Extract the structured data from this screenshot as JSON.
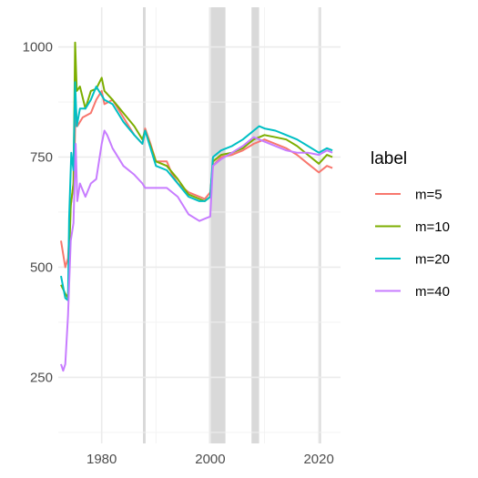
{
  "chart_data": {
    "type": "line",
    "title": "",
    "xlabel": "",
    "ylabel": "",
    "xlim": [
      1972,
      2024
    ],
    "ylim": [
      100,
      1090
    ],
    "x_ticks": [
      1980,
      2000,
      2020
    ],
    "x_tick_labels": [
      "1980",
      "2000",
      "2020"
    ],
    "y_ticks": [
      250,
      500,
      750,
      1000
    ],
    "y_tick_labels": [
      "250",
      "500",
      "750",
      "1000"
    ],
    "grid": true,
    "legend": {
      "title": "label",
      "position": "right"
    },
    "shaded_periods": [
      [
        1987.6,
        1988.1
      ],
      [
        1999.8,
        2002.8
      ],
      [
        2007.6,
        2009.0
      ],
      [
        2020.1,
        2020.4
      ]
    ],
    "series": [
      {
        "name": "m=5",
        "color": "#F8766D",
        "x": [
          1972.5,
          1973.3,
          1973.8,
          1974.3,
          1974.9,
          1975.2,
          1975.5,
          1976.5,
          1978,
          1979,
          1980,
          1980.5,
          1982,
          1984,
          1986,
          1987.5,
          1988,
          1989,
          1990,
          1992,
          1993,
          1994,
          1996,
          1998,
          1999,
          2000,
          2000.5,
          2002,
          2004,
          2006,
          2008,
          2010,
          2012,
          2014,
          2016,
          2018,
          2020,
          2021.5,
          2022.5
        ],
        "y": [
          560,
          500,
          520,
          640,
          700,
          870,
          820,
          840,
          850,
          880,
          900,
          870,
          880,
          840,
          800,
          780,
          815,
          780,
          740,
          740,
          710,
          690,
          670,
          660,
          655,
          670,
          730,
          750,
          755,
          765,
          780,
          790,
          780,
          770,
          755,
          735,
          715,
          730,
          725
        ]
      },
      {
        "name": "m=10",
        "color": "#7CAE00",
        "x": [
          1972.5,
          1973.3,
          1973.8,
          1974.3,
          1974.8,
          1975.1,
          1975.4,
          1976,
          1977,
          1978,
          1979,
          1980,
          1980.5,
          1982,
          1984,
          1986,
          1987.5,
          1988,
          1990,
          1992,
          1994,
          1996,
          1998,
          1999,
          2000,
          2000.5,
          2002,
          2004,
          2006,
          2008,
          2010,
          2012,
          2014,
          2016,
          2018,
          2020,
          2021.5,
          2022.5
        ],
        "y": [
          460,
          440,
          430,
          640,
          690,
          1010,
          900,
          910,
          860,
          900,
          905,
          930,
          900,
          880,
          850,
          820,
          790,
          810,
          740,
          730,
          700,
          665,
          655,
          650,
          660,
          740,
          755,
          760,
          770,
          790,
          800,
          795,
          790,
          775,
          755,
          735,
          755,
          750
        ]
      },
      {
        "name": "m=20",
        "color": "#00BFC4",
        "x": [
          1972.5,
          1973.3,
          1973.8,
          1974,
          1974.4,
          1974.8,
          1975.1,
          1975.4,
          1976,
          1977,
          1978,
          1979,
          1980,
          1980.5,
          1982,
          1984,
          1986,
          1987.5,
          1988,
          1990,
          1992,
          1994,
          1996,
          1998,
          1999,
          2000,
          2000.5,
          2002,
          2004,
          2006,
          2008,
          2009,
          2010,
          2012,
          2014,
          2016,
          2018,
          2020,
          2021.5,
          2022.5
        ],
        "y": [
          480,
          430,
          425,
          610,
          760,
          720,
          920,
          820,
          860,
          860,
          880,
          910,
          890,
          880,
          870,
          830,
          800,
          780,
          810,
          730,
          720,
          690,
          660,
          650,
          650,
          660,
          750,
          765,
          775,
          790,
          810,
          820,
          815,
          810,
          800,
          790,
          775,
          760,
          770,
          765
        ]
      },
      {
        "name": "m=40",
        "color": "#C77CFF",
        "x": [
          1972.5,
          1972.9,
          1973.3,
          1973.8,
          1974.3,
          1974.8,
          1975.2,
          1975.5,
          1976,
          1977,
          1978,
          1979,
          1980,
          1980.5,
          1981,
          1982,
          1984,
          1986,
          1987.5,
          1988,
          1990,
          1992,
          1994,
          1996,
          1998,
          1999,
          2000,
          2000.5,
          2002,
          2004,
          2006,
          2008,
          2010,
          2012,
          2014,
          2016,
          2018,
          2020,
          2021.5,
          2022.5
        ],
        "y": [
          280,
          265,
          280,
          390,
          560,
          600,
          780,
          650,
          690,
          660,
          690,
          700,
          780,
          810,
          800,
          770,
          730,
          710,
          690,
          680,
          680,
          680,
          660,
          620,
          605,
          610,
          615,
          730,
          745,
          760,
          775,
          795,
          785,
          775,
          765,
          760,
          760,
          755,
          765,
          760
        ]
      }
    ]
  }
}
